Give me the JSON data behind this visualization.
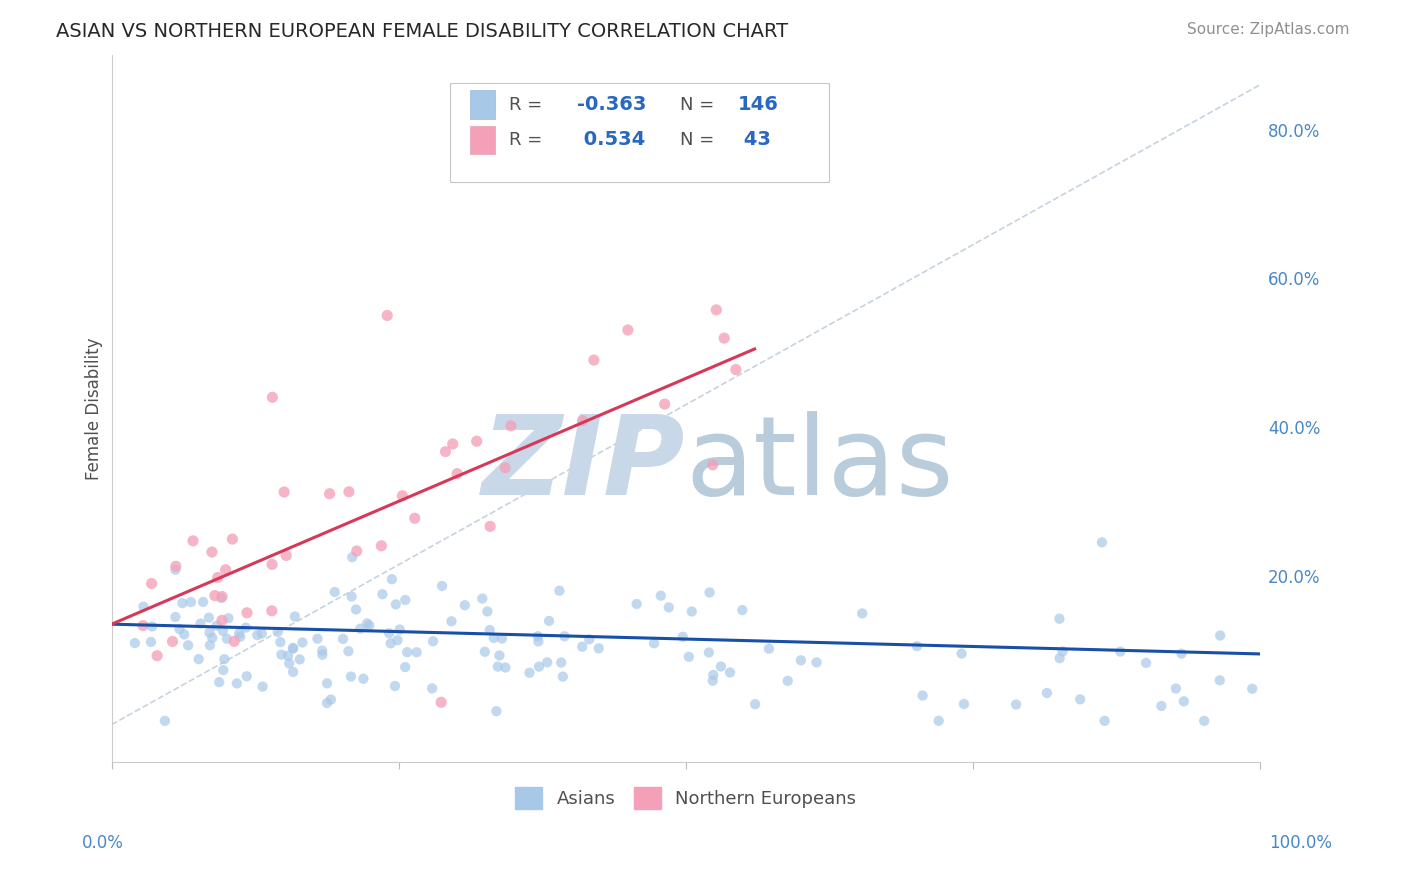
{
  "title": "ASIAN VS NORTHERN EUROPEAN FEMALE DISABILITY CORRELATION CHART",
  "source": "Source: ZipAtlas.com",
  "ylabel": "Female Disability",
  "legend_labels": [
    "Asians",
    "Northern Europeans"
  ],
  "blue_R": -0.363,
  "blue_N": 146,
  "pink_R": 0.534,
  "pink_N": 43,
  "blue_color": "#a8c8e8",
  "pink_color": "#f4a0b8",
  "blue_line_color": "#1850a8",
  "pink_line_color": "#d83858",
  "ref_line_color": "#b8c8d8",
  "title_color": "#282828",
  "axis_color": "#4888c8",
  "watermark_main_color": "#c8d8e8",
  "watermark_sub_color": "#b8ccdc",
  "background_color": "#ffffff",
  "grid_color": "#d0e4f0",
  "legend_text_color": "#505050",
  "legend_R_color": "#2868c0",
  "legend_N_color": "#2868c0",
  "xmin": 0.0,
  "xmax": 1.0,
  "ymin": -0.05,
  "ymax": 0.9,
  "blue_scatter_seed": 42,
  "pink_scatter_seed": 15
}
